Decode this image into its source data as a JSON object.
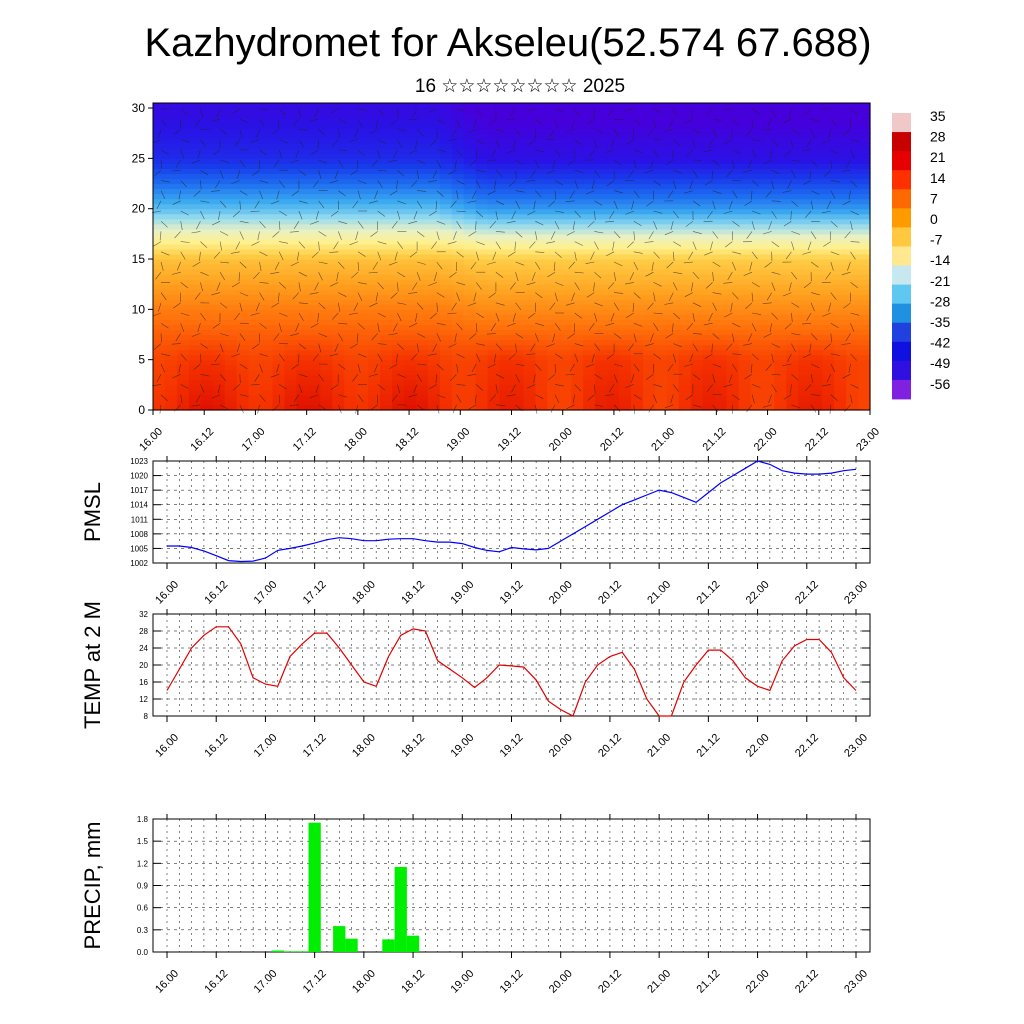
{
  "header": {
    "title": "Kazhydromet for Akseleu(52.574 67.688)",
    "subtitle": "16 ☆☆☆☆☆☆☆☆ 2025"
  },
  "colorbar": {
    "labels": [
      "35",
      "28",
      "21",
      "14",
      "7",
      "0",
      "-7",
      "-14",
      "-21",
      "-28",
      "-35",
      "-42",
      "-49",
      "-56"
    ],
    "colors": [
      "#f0c8c8",
      "#c80000",
      "#e60000",
      "#ff3000",
      "#ff6a00",
      "#ff9a00",
      "#ffc840",
      "#ffe890",
      "#c8e8f0",
      "#60c8f0",
      "#2090e0",
      "#2040e0",
      "#1010e0",
      "#3010e0",
      "#8020e0"
    ]
  },
  "x_tick_labels": [
    "16.00",
    "16.12",
    "17.00",
    "17.12",
    "18.00",
    "18.12",
    "19.00",
    "19.12",
    "20.00",
    "20.12",
    "21.00",
    "21.12",
    "22.00",
    "22.12",
    "23.00"
  ],
  "chart_data": [
    {
      "type": "heatmap",
      "title": "",
      "ylim": [
        0,
        30
      ],
      "y_ticks": [
        "0",
        "5",
        "10",
        "15",
        "20",
        "25",
        "30"
      ],
      "x": [
        "16.00",
        "16.12",
        "17.00",
        "17.12",
        "18.00",
        "18.12",
        "19.00",
        "19.12",
        "20.00",
        "20.12",
        "21.00",
        "21.12",
        "22.00",
        "22.12",
        "23.00"
      ],
      "z_colorbar_range": [
        -56,
        35
      ],
      "levels": [
        0,
        5,
        10,
        15,
        20,
        25,
        30
      ],
      "profile_before_19_00": [
        24,
        20,
        12,
        2,
        -25,
        -45,
        -52
      ],
      "profile_after_19_00": [
        22,
        20,
        10,
        0,
        -30,
        -50,
        -58
      ],
      "overlay": "wind barbs"
    },
    {
      "type": "line",
      "ylabel": "PMSL",
      "ylim": [
        1002,
        1023
      ],
      "y_ticks": [
        "1002",
        "1005",
        "1008",
        "1011",
        "1014",
        "1017",
        "1020",
        "1023"
      ],
      "x": [
        "16.00",
        "16.03",
        "16.06",
        "16.09",
        "16.12",
        "16.15",
        "16.18",
        "16.21",
        "17.00",
        "17.03",
        "17.06",
        "17.09",
        "17.12",
        "17.15",
        "17.18",
        "17.21",
        "18.00",
        "18.03",
        "18.06",
        "18.09",
        "18.12",
        "18.15",
        "18.18",
        "18.21",
        "19.00",
        "19.03",
        "19.06",
        "19.09",
        "19.12",
        "19.15",
        "19.18",
        "19.21",
        "20.00",
        "20.03",
        "20.06",
        "20.09",
        "20.12",
        "20.15",
        "20.18",
        "20.21",
        "21.00",
        "21.03",
        "21.06",
        "21.09",
        "21.12",
        "21.15",
        "21.18",
        "21.21",
        "22.00",
        "22.03",
        "22.06",
        "22.09",
        "22.12",
        "22.15",
        "22.18",
        "22.21",
        "23.00"
      ],
      "series": [
        {
          "color": "#0000ff",
          "values": [
            1005.5,
            1005.5,
            1005.2,
            1004.5,
            1003.5,
            1002.5,
            1002.3,
            1002.4,
            1003.0,
            1004.6,
            1005.0,
            1005.5,
            1006.1,
            1006.8,
            1007.2,
            1007.0,
            1006.6,
            1006.6,
            1006.9,
            1007.0,
            1007.0,
            1006.6,
            1006.3,
            1006.3,
            1006.0,
            1005.2,
            1004.6,
            1004.3,
            1005.2,
            1004.9,
            1004.7,
            1005.0,
            1006.5,
            1008.0,
            1009.5,
            1011.0,
            1012.5,
            1014.0,
            1015.0,
            1016.0,
            1017.0,
            1016.5,
            1015.5,
            1014.5,
            1016.5,
            1018.5,
            1020.0,
            1021.5,
            1023.0,
            1022.3,
            1021.0,
            1020.5,
            1020.3,
            1020.3,
            1020.5,
            1021.0,
            1021.3
          ]
        }
      ]
    },
    {
      "type": "line",
      "ylabel": "TEMP at 2 M",
      "ylim": [
        8,
        32
      ],
      "y_ticks": [
        "8",
        "12",
        "16",
        "20",
        "24",
        "28",
        "32"
      ],
      "x_hours_from_16.00": [
        0,
        6,
        9,
        12,
        15,
        18,
        21,
        24,
        27,
        30,
        33,
        36,
        39,
        42,
        45,
        48,
        51,
        54,
        57,
        60,
        63,
        66,
        69,
        72,
        75,
        78,
        81,
        84,
        87,
        90,
        93,
        96,
        99,
        102,
        105,
        108,
        111,
        114,
        117,
        120,
        123,
        126,
        129,
        132,
        135,
        138,
        141,
        144,
        147,
        150,
        153,
        156,
        159,
        162,
        165,
        168
      ],
      "series": [
        {
          "color": "#e00000",
          "values": [
            14.0,
            24.0,
            27.0,
            29.0,
            29.0,
            25.0,
            17.0,
            15.5,
            15.0,
            22.0,
            25.0,
            27.5,
            27.5,
            24.0,
            20.0,
            16.0,
            15.0,
            22.0,
            27.0,
            28.5,
            28.0,
            21.0,
            19.0,
            17.0,
            14.7,
            17.0,
            20.0,
            19.8,
            19.5,
            16.5,
            11.5,
            9.5,
            8.0,
            16.0,
            20.0,
            22.0,
            23.0,
            19.0,
            12.0,
            8.0,
            8.0,
            16.0,
            20.0,
            23.5,
            23.5,
            21.0,
            17.0,
            15.0,
            14.0,
            21.0,
            24.5,
            26.0,
            26.0,
            23.0,
            17.0,
            14.0
          ]
        }
      ]
    },
    {
      "type": "bar",
      "ylabel": "PRECIP, mm",
      "ylim": [
        0,
        1.8
      ],
      "y_ticks": [
        "0.0",
        "0.3",
        "0.6",
        "0.9",
        "1.2",
        "1.5",
        "1.8"
      ],
      "bar_color": "#00ee00",
      "x_hours_from_16.00": [
        27,
        30,
        33,
        36,
        39,
        42,
        45,
        48,
        51,
        54,
        57,
        60,
        63
      ],
      "values": [
        0.02,
        0.01,
        0.01,
        1.75,
        0.0,
        0.35,
        0.18,
        0.0,
        0.0,
        0.17,
        1.15,
        0.22,
        0.0
      ]
    }
  ]
}
